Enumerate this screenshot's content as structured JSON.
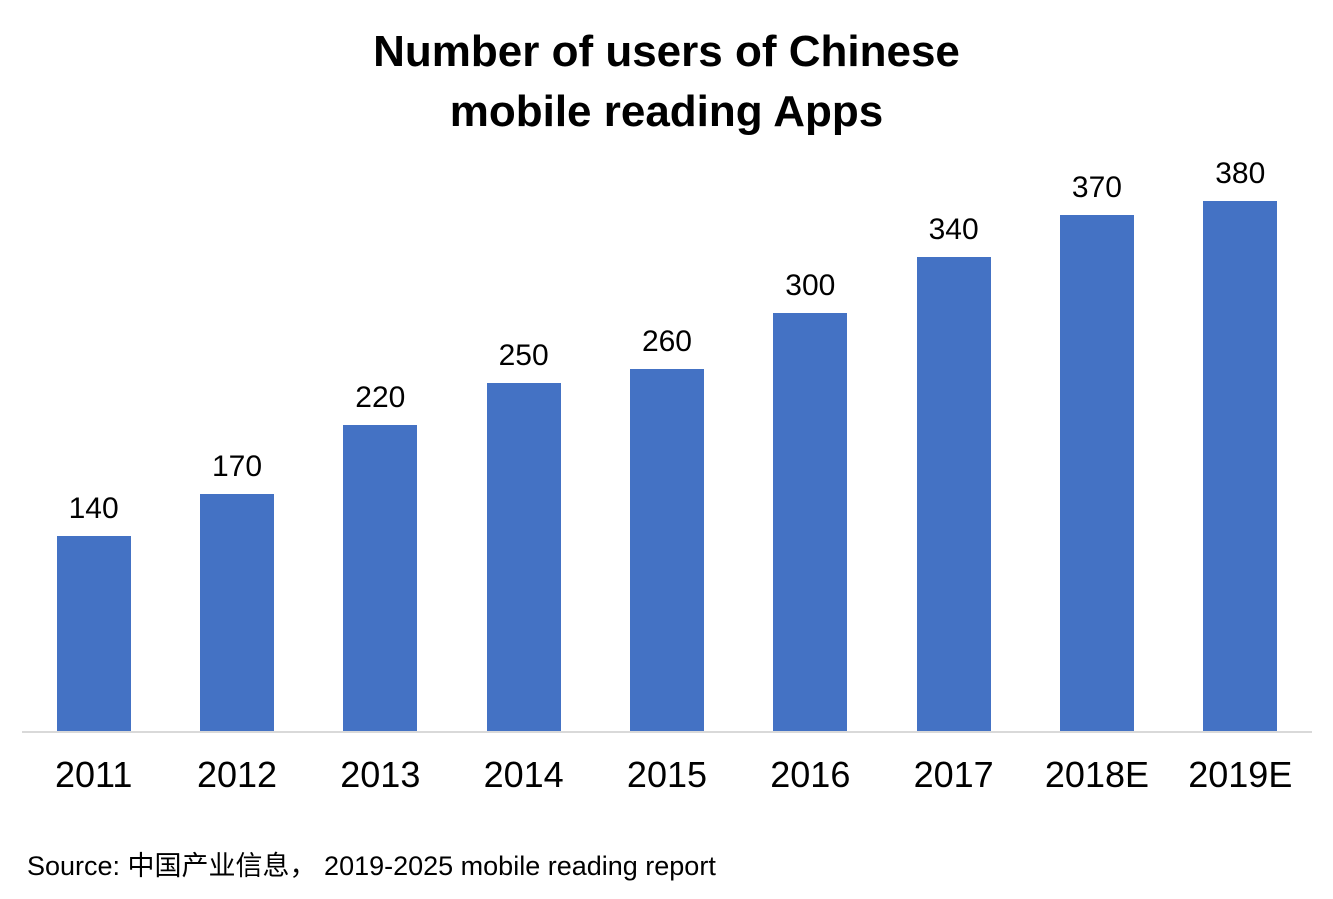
{
  "page": {
    "background": "#FFFFFF"
  },
  "title": {
    "line1": "Number of users of Chinese",
    "line2": "mobile reading Apps"
  },
  "source_note": "Source: 中国产业信息， 2019-2025 mobile reading report",
  "colors": {
    "bar": "#4472C4",
    "axis_line": "#D9D9D9",
    "text": "#000000"
  },
  "chart_data": {
    "type": "bar",
    "title": "Number of users of Chinese mobile reading Apps",
    "categories": [
      "2011",
      "2012",
      "2013",
      "2014",
      "2015",
      "2016",
      "2017",
      "2018E",
      "2019E"
    ],
    "values": [
      140,
      170,
      220,
      250,
      260,
      300,
      340,
      370,
      380
    ],
    "xlabel": "",
    "ylabel": "",
    "ylim": [
      0,
      420
    ],
    "grid": false,
    "legend": false,
    "data_labels": true,
    "y_axis_visible": false,
    "bar_color": "#4472C4",
    "source": "Source: 中国产业信息， 2019-2025 mobile reading report"
  }
}
